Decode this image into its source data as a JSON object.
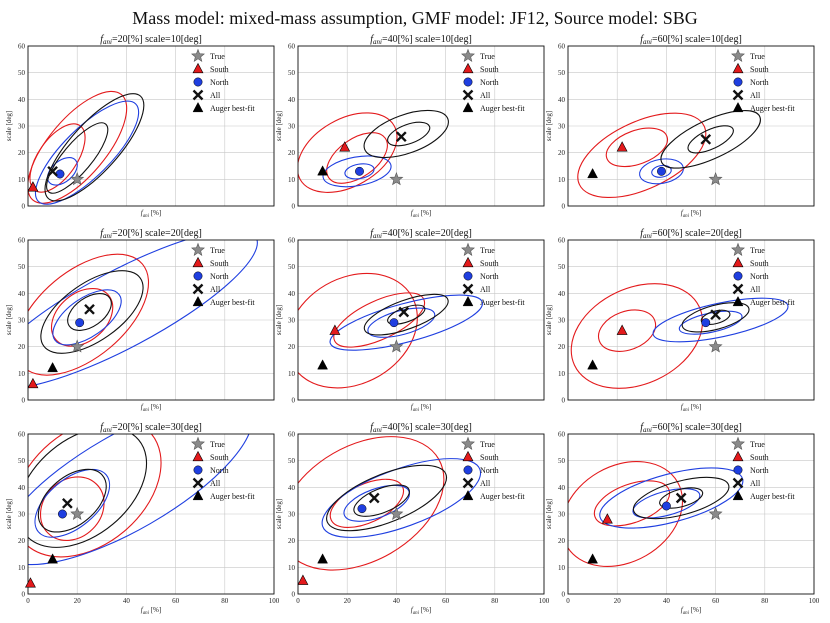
{
  "suptitle": "Mass model: mixed-mass assumption, GMF model: JF12, Source model: SBG",
  "colors": {
    "south": "#e31a1c",
    "north": "#1f3fe0",
    "all": "#111111",
    "true_star": "#8a8a8a",
    "grid": "#c8c8c8"
  },
  "legend": {
    "true": "True",
    "south": "South",
    "north": "North",
    "all": "All",
    "auger": "Auger best-fit"
  },
  "axes": {
    "xlabel": "f_ani [%]",
    "ylabel": "scale [deg]",
    "xlim": [
      0,
      100
    ],
    "ylim": [
      0,
      60
    ],
    "xticks": [
      0,
      20,
      40,
      60,
      80,
      100
    ],
    "yticks": [
      0,
      10,
      20,
      30,
      40,
      50,
      60
    ]
  },
  "chart_data": [
    {
      "type": "scatter",
      "title": "f_ani=20[%] scale=10[deg]",
      "fani": 20,
      "scale": 10,
      "true": [
        20,
        10
      ],
      "south": [
        2,
        7
      ],
      "north": [
        13,
        12
      ],
      "all": [
        10,
        13
      ],
      "auger": [
        2,
        7
      ],
      "contours_south": [
        {
          "c": [
            20,
            22
          ],
          "rx": 28,
          "ry": 6,
          "ang": 50
        },
        {
          "c": [
            12,
            18
          ],
          "rx": 16,
          "ry": 4,
          "ang": 55
        }
      ],
      "contours_north": [
        {
          "c": [
            24,
            20
          ],
          "rx": 28,
          "ry": 5,
          "ang": 45
        },
        {
          "c": [
            14,
            13
          ],
          "rx": 7,
          "ry": 2.2,
          "ang": 40
        }
      ],
      "contours_all": [
        {
          "c": [
            27,
            22
          ],
          "rx": 28,
          "ry": 5,
          "ang": 48
        },
        {
          "c": [
            20,
            18
          ],
          "rx": 18,
          "ry": 3,
          "ang": 50
        }
      ]
    },
    {
      "type": "scatter",
      "title": "f_ani=40[%] scale=10[deg]",
      "fani": 40,
      "scale": 10,
      "true": [
        40,
        10
      ],
      "south": [
        19,
        22
      ],
      "north": [
        25,
        13
      ],
      "all": [
        42,
        26
      ],
      "auger": [
        10,
        13
      ],
      "contours_south": [
        {
          "c": [
            20,
            20
          ],
          "rx": 22,
          "ry": 7,
          "ang": 30
        },
        {
          "c": [
            24,
            18
          ],
          "rx": 14,
          "ry": 4,
          "ang": 35
        }
      ],
      "contours_north": [
        {
          "c": [
            24,
            13
          ],
          "rx": 14,
          "ry": 3,
          "ang": 10
        },
        {
          "c": [
            25,
            13
          ],
          "rx": 6,
          "ry": 1.5,
          "ang": 10
        }
      ],
      "contours_all": [
        {
          "c": [
            44,
            27
          ],
          "rx": 18,
          "ry": 4,
          "ang": 20
        },
        {
          "c": [
            45,
            27
          ],
          "rx": 9,
          "ry": 2,
          "ang": 20
        }
      ]
    },
    {
      "type": "scatter",
      "title": "f_ani=60[%] scale=10[deg]",
      "fani": 60,
      "scale": 10,
      "true": [
        60,
        10
      ],
      "south": [
        22,
        22
      ],
      "north": [
        38,
        13
      ],
      "all": [
        56,
        25
      ],
      "auger": [
        10,
        12
      ],
      "contours_south": [
        {
          "c": [
            30,
            19
          ],
          "rx": 28,
          "ry": 7,
          "ang": 25
        },
        {
          "c": [
            28,
            22
          ],
          "rx": 13,
          "ry": 3.5,
          "ang": 20
        }
      ],
      "contours_north": [
        {
          "c": [
            38,
            13
          ],
          "rx": 9,
          "ry": 2.5,
          "ang": 10
        },
        {
          "c": [
            38,
            13
          ],
          "rx": 4,
          "ry": 1.2,
          "ang": 10
        }
      ],
      "contours_all": [
        {
          "c": [
            58,
            25
          ],
          "rx": 22,
          "ry": 4,
          "ang": 25
        },
        {
          "c": [
            58,
            25
          ],
          "rx": 10,
          "ry": 2,
          "ang": 25
        }
      ]
    },
    {
      "type": "scatter",
      "title": "f_ani=20[%] scale=20[deg]",
      "fani": 20,
      "scale": 20,
      "true": [
        20,
        20
      ],
      "south": [
        2,
        6
      ],
      "north": [
        21,
        29
      ],
      "all": [
        25,
        34
      ],
      "auger": [
        10,
        12
      ],
      "contours_south": [
        {
          "c": [
            22,
            32
          ],
          "rx": 32,
          "ry": 9,
          "ang": 40
        },
        {
          "c": [
            22,
            31
          ],
          "rx": 14,
          "ry": 5,
          "ang": 40
        }
      ],
      "contours_north": [
        {
          "c": [
            38,
            34
          ],
          "rx": 62,
          "ry": 8,
          "ang": 28
        },
        {
          "c": [
            24,
            31
          ],
          "rx": 16,
          "ry": 4,
          "ang": 35
        }
      ],
      "contours_all": [
        {
          "c": [
            26,
            33
          ],
          "rx": 24,
          "ry": 6,
          "ang": 35
        },
        {
          "c": [
            25,
            33
          ],
          "rx": 10,
          "ry": 3,
          "ang": 35
        }
      ]
    },
    {
      "type": "scatter",
      "title": "f_ani=40[%] scale=20[deg]",
      "fani": 40,
      "scale": 20,
      "true": [
        40,
        20
      ],
      "south": [
        15,
        26
      ],
      "north": [
        39,
        29
      ],
      "all": [
        43,
        33
      ],
      "auger": [
        10,
        13
      ],
      "contours_south": [
        {
          "c": [
            22,
            26
          ],
          "rx": 28,
          "ry": 11,
          "ang": 30
        },
        {
          "c": [
            33,
            30
          ],
          "rx": 20,
          "ry": 4,
          "ang": 25
        }
      ],
      "contours_north": [
        {
          "c": [
            44,
            29
          ],
          "rx": 32,
          "ry": 4,
          "ang": 15
        },
        {
          "c": [
            42,
            29
          ],
          "rx": 14,
          "ry": 2.5,
          "ang": 15
        }
      ],
      "contours_all": [
        {
          "c": [
            44,
            32
          ],
          "rx": 18,
          "ry": 3,
          "ang": 20
        },
        {
          "c": [
            44,
            32
          ],
          "rx": 8,
          "ry": 1.5,
          "ang": 20
        }
      ]
    },
    {
      "type": "scatter",
      "title": "f_ani=60[%] scale=20[deg]",
      "fani": 60,
      "scale": 20,
      "true": [
        60,
        20
      ],
      "south": [
        22,
        26
      ],
      "north": [
        56,
        29
      ],
      "all": [
        60,
        32
      ],
      "auger": [
        10,
        13
      ],
      "contours_south": [
        {
          "c": [
            28,
            24
          ],
          "rx": 28,
          "ry": 10,
          "ang": 25
        },
        {
          "c": [
            24,
            26
          ],
          "rx": 12,
          "ry": 4,
          "ang": 20
        }
      ],
      "contours_north": [
        {
          "c": [
            62,
            30
          ],
          "rx": 28,
          "ry": 3.5,
          "ang": 12
        },
        {
          "c": [
            58,
            29
          ],
          "rx": 13,
          "ry": 2,
          "ang": 12
        }
      ],
      "contours_all": [
        {
          "c": [
            60,
            31
          ],
          "rx": 14,
          "ry": 2.5,
          "ang": 15
        },
        {
          "c": [
            60,
            31
          ],
          "rx": 6,
          "ry": 1.3,
          "ang": 15
        }
      ]
    },
    {
      "type": "scatter",
      "title": "f_ani=20[%] scale=30[deg]",
      "fani": 20,
      "scale": 30,
      "true": [
        20,
        30
      ],
      "south": [
        1,
        4
      ],
      "north": [
        14,
        30
      ],
      "all": [
        16,
        34
      ],
      "auger": [
        10,
        13
      ],
      "contours_south": [
        {
          "c": [
            24,
            40
          ],
          "rx": 34,
          "ry": 12,
          "ang": 40
        },
        {
          "c": [
            18,
            32
          ],
          "rx": 14,
          "ry": 6,
          "ang": 45
        }
      ],
      "contours_north": [
        {
          "c": [
            40,
            42
          ],
          "rx": 58,
          "ry": 10,
          "ang": 30
        },
        {
          "c": [
            18,
            34
          ],
          "rx": 18,
          "ry": 5,
          "ang": 40
        }
      ],
      "contours_all": [
        {
          "c": [
            22,
            40
          ],
          "rx": 30,
          "ry": 10,
          "ang": 40
        },
        {
          "c": [
            18,
            35
          ],
          "rx": 16,
          "ry": 5,
          "ang": 40
        }
      ]
    },
    {
      "type": "scatter",
      "title": "f_ani=40[%] scale=30[deg]",
      "fani": 40,
      "scale": 30,
      "true": [
        40,
        30
      ],
      "south": [
        2,
        5
      ],
      "north": [
        26,
        32
      ],
      "all": [
        31,
        36
      ],
      "auger": [
        10,
        13
      ],
      "contours_south": [
        {
          "c": [
            26,
            34
          ],
          "rx": 36,
          "ry": 12,
          "ang": 30
        },
        {
          "c": [
            28,
            34
          ],
          "rx": 16,
          "ry": 4,
          "ang": 25
        }
      ],
      "contours_north": [
        {
          "c": [
            42,
            36
          ],
          "rx": 34,
          "ry": 6,
          "ang": 20
        },
        {
          "c": [
            32,
            34
          ],
          "rx": 14,
          "ry": 3,
          "ang": 20
        }
      ],
      "contours_all": [
        {
          "c": [
            36,
            36
          ],
          "rx": 26,
          "ry": 5,
          "ang": 22
        },
        {
          "c": [
            34,
            35
          ],
          "rx": 12,
          "ry": 2.5,
          "ang": 22
        }
      ]
    },
    {
      "type": "scatter",
      "title": "f_ani=60[%] scale=30[deg]",
      "fani": 60,
      "scale": 30,
      "true": [
        60,
        30
      ],
      "south": [
        16,
        28
      ],
      "north": [
        40,
        33
      ],
      "all": [
        46,
        36
      ],
      "auger": [
        10,
        13
      ],
      "contours_south": [
        {
          "c": [
            22,
            30
          ],
          "rx": 26,
          "ry": 10,
          "ang": 30
        },
        {
          "c": [
            26,
            34
          ],
          "rx": 16,
          "ry": 4,
          "ang": 20
        }
      ],
      "contours_north": [
        {
          "c": [
            42,
            36
          ],
          "rx": 30,
          "ry": 5,
          "ang": 15
        },
        {
          "c": [
            40,
            34
          ],
          "rx": 14,
          "ry": 2.5,
          "ang": 15
        }
      ],
      "contours_all": [
        {
          "c": [
            46,
            36
          ],
          "rx": 20,
          "ry": 3.5,
          "ang": 15
        },
        {
          "c": [
            46,
            36
          ],
          "rx": 9,
          "ry": 1.8,
          "ang": 15
        }
      ]
    }
  ]
}
